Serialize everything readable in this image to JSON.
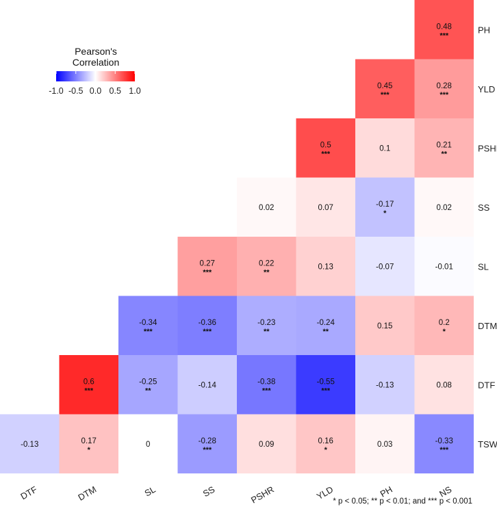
{
  "chart_data": {
    "type": "heatmap",
    "x_labels": [
      "DTF",
      "DTM",
      "SL",
      "SS",
      "PSHR",
      "YLD",
      "PH",
      "NS"
    ],
    "y_labels": [
      "PH",
      "YLD",
      "PSHR",
      "SS",
      "SL",
      "DTM",
      "DTF",
      "TSW"
    ],
    "cells": [
      {
        "x": "NS",
        "y": "PH",
        "value": 0.48,
        "label": "0.48",
        "sig": "***"
      },
      {
        "x": "PH",
        "y": "YLD",
        "value": 0.45,
        "label": "0.45",
        "sig": "***"
      },
      {
        "x": "NS",
        "y": "YLD",
        "value": 0.28,
        "label": "0.28",
        "sig": "***"
      },
      {
        "x": "YLD",
        "y": "PSHR",
        "value": 0.5,
        "label": "0.5",
        "sig": "***"
      },
      {
        "x": "PH",
        "y": "PSHR",
        "value": 0.1,
        "label": "0.1",
        "sig": ""
      },
      {
        "x": "NS",
        "y": "PSHR",
        "value": 0.21,
        "label": "0.21",
        "sig": "**"
      },
      {
        "x": "PSHR",
        "y": "SS",
        "value": 0.02,
        "label": "0.02",
        "sig": ""
      },
      {
        "x": "YLD",
        "y": "SS",
        "value": 0.07,
        "label": "0.07",
        "sig": ""
      },
      {
        "x": "PH",
        "y": "SS",
        "value": -0.17,
        "label": "-0.17",
        "sig": "*"
      },
      {
        "x": "NS",
        "y": "SS",
        "value": 0.02,
        "label": "0.02",
        "sig": ""
      },
      {
        "x": "SS",
        "y": "SL",
        "value": 0.27,
        "label": "0.27",
        "sig": "***"
      },
      {
        "x": "PSHR",
        "y": "SL",
        "value": 0.22,
        "label": "0.22",
        "sig": "**"
      },
      {
        "x": "YLD",
        "y": "SL",
        "value": 0.13,
        "label": "0.13",
        "sig": ""
      },
      {
        "x": "PH",
        "y": "SL",
        "value": -0.07,
        "label": "-0.07",
        "sig": ""
      },
      {
        "x": "NS",
        "y": "SL",
        "value": -0.01,
        "label": "-0.01",
        "sig": ""
      },
      {
        "x": "SL",
        "y": "DTM",
        "value": -0.34,
        "label": "-0.34",
        "sig": "***"
      },
      {
        "x": "SS",
        "y": "DTM",
        "value": -0.36,
        "label": "-0.36",
        "sig": "***"
      },
      {
        "x": "PSHR",
        "y": "DTM",
        "value": -0.23,
        "label": "-0.23",
        "sig": "**"
      },
      {
        "x": "YLD",
        "y": "DTM",
        "value": -0.24,
        "label": "-0.24",
        "sig": "**"
      },
      {
        "x": "PH",
        "y": "DTM",
        "value": 0.15,
        "label": "0.15",
        "sig": ""
      },
      {
        "x": "NS",
        "y": "DTM",
        "value": 0.2,
        "label": "0.2",
        "sig": "*"
      },
      {
        "x": "DTM",
        "y": "DTF",
        "value": 0.6,
        "label": "0.6",
        "sig": "***"
      },
      {
        "x": "SL",
        "y": "DTF",
        "value": -0.25,
        "label": "-0.25",
        "sig": "**"
      },
      {
        "x": "SS",
        "y": "DTF",
        "value": -0.14,
        "label": "-0.14",
        "sig": ""
      },
      {
        "x": "PSHR",
        "y": "DTF",
        "value": -0.38,
        "label": "-0.38",
        "sig": "***"
      },
      {
        "x": "YLD",
        "y": "DTF",
        "value": -0.55,
        "label": "-0.55",
        "sig": "***"
      },
      {
        "x": "PH",
        "y": "DTF",
        "value": -0.13,
        "label": "-0.13",
        "sig": ""
      },
      {
        "x": "NS",
        "y": "DTF",
        "value": 0.08,
        "label": "0.08",
        "sig": ""
      },
      {
        "x": "DTF",
        "y": "TSW",
        "value": -0.13,
        "label": "-0.13",
        "sig": ""
      },
      {
        "x": "DTM",
        "y": "TSW",
        "value": 0.17,
        "label": "0.17",
        "sig": "*"
      },
      {
        "x": "SL",
        "y": "TSW",
        "value": 0,
        "label": "0",
        "sig": ""
      },
      {
        "x": "SS",
        "y": "TSW",
        "value": -0.28,
        "label": "-0.28",
        "sig": "***"
      },
      {
        "x": "PSHR",
        "y": "TSW",
        "value": 0.09,
        "label": "0.09",
        "sig": ""
      },
      {
        "x": "YLD",
        "y": "TSW",
        "value": 0.16,
        "label": "0.16",
        "sig": "*"
      },
      {
        "x": "PH",
        "y": "TSW",
        "value": 0.03,
        "label": "0.03",
        "sig": ""
      },
      {
        "x": "NS",
        "y": "TSW",
        "value": -0.33,
        "label": "-0.33",
        "sig": "***"
      }
    ],
    "legend": {
      "title_line1": "Pearson's",
      "title_line2": "Correlation",
      "range": [
        -1.0,
        1.0
      ],
      "ticks": [
        "-1.0",
        "-0.5",
        "0.0",
        "0.5",
        "1.0"
      ],
      "placement": "top-left"
    },
    "colors": {
      "low": "#0000ff",
      "mid": "#ffffff",
      "high": "#ff0000"
    },
    "footnote": "* p < 0.05; ** p < 0.01; and *** p < 0.001"
  }
}
